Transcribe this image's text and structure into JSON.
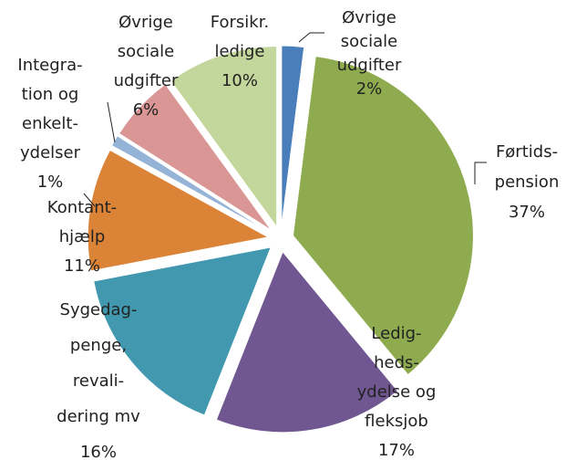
{
  "chart_data": {
    "type": "pie",
    "categories": [
      [
        "Øvrige",
        "sociale",
        "udgifter"
      ],
      [
        "Førtids-",
        "pension"
      ],
      [
        "Ledig-",
        "heds-",
        "ydelse og",
        "fleksjob"
      ],
      [
        "Sygedag-",
        "penge,",
        "revali-",
        "dering mv"
      ],
      [
        "Kontant-",
        "hjælp"
      ],
      [
        "Integra-",
        "tion og",
        "enkelt-",
        "ydelser"
      ],
      [
        "Øvrige",
        "sociale",
        "udgifter"
      ],
      [
        "Forsikr.",
        "ledige"
      ]
    ],
    "values": [
      2,
      37,
      17,
      16,
      11,
      1,
      6,
      10
    ],
    "value_labels": [
      "2%",
      "37%",
      "17%",
      "16%",
      "11%",
      "1%",
      "6%",
      "10%"
    ],
    "colors": [
      "#4a7ebb",
      "#8fab4f",
      "#705791",
      "#4198af",
      "#db8438",
      "#95b3d7",
      "#d99694",
      "#c3d69b"
    ]
  }
}
